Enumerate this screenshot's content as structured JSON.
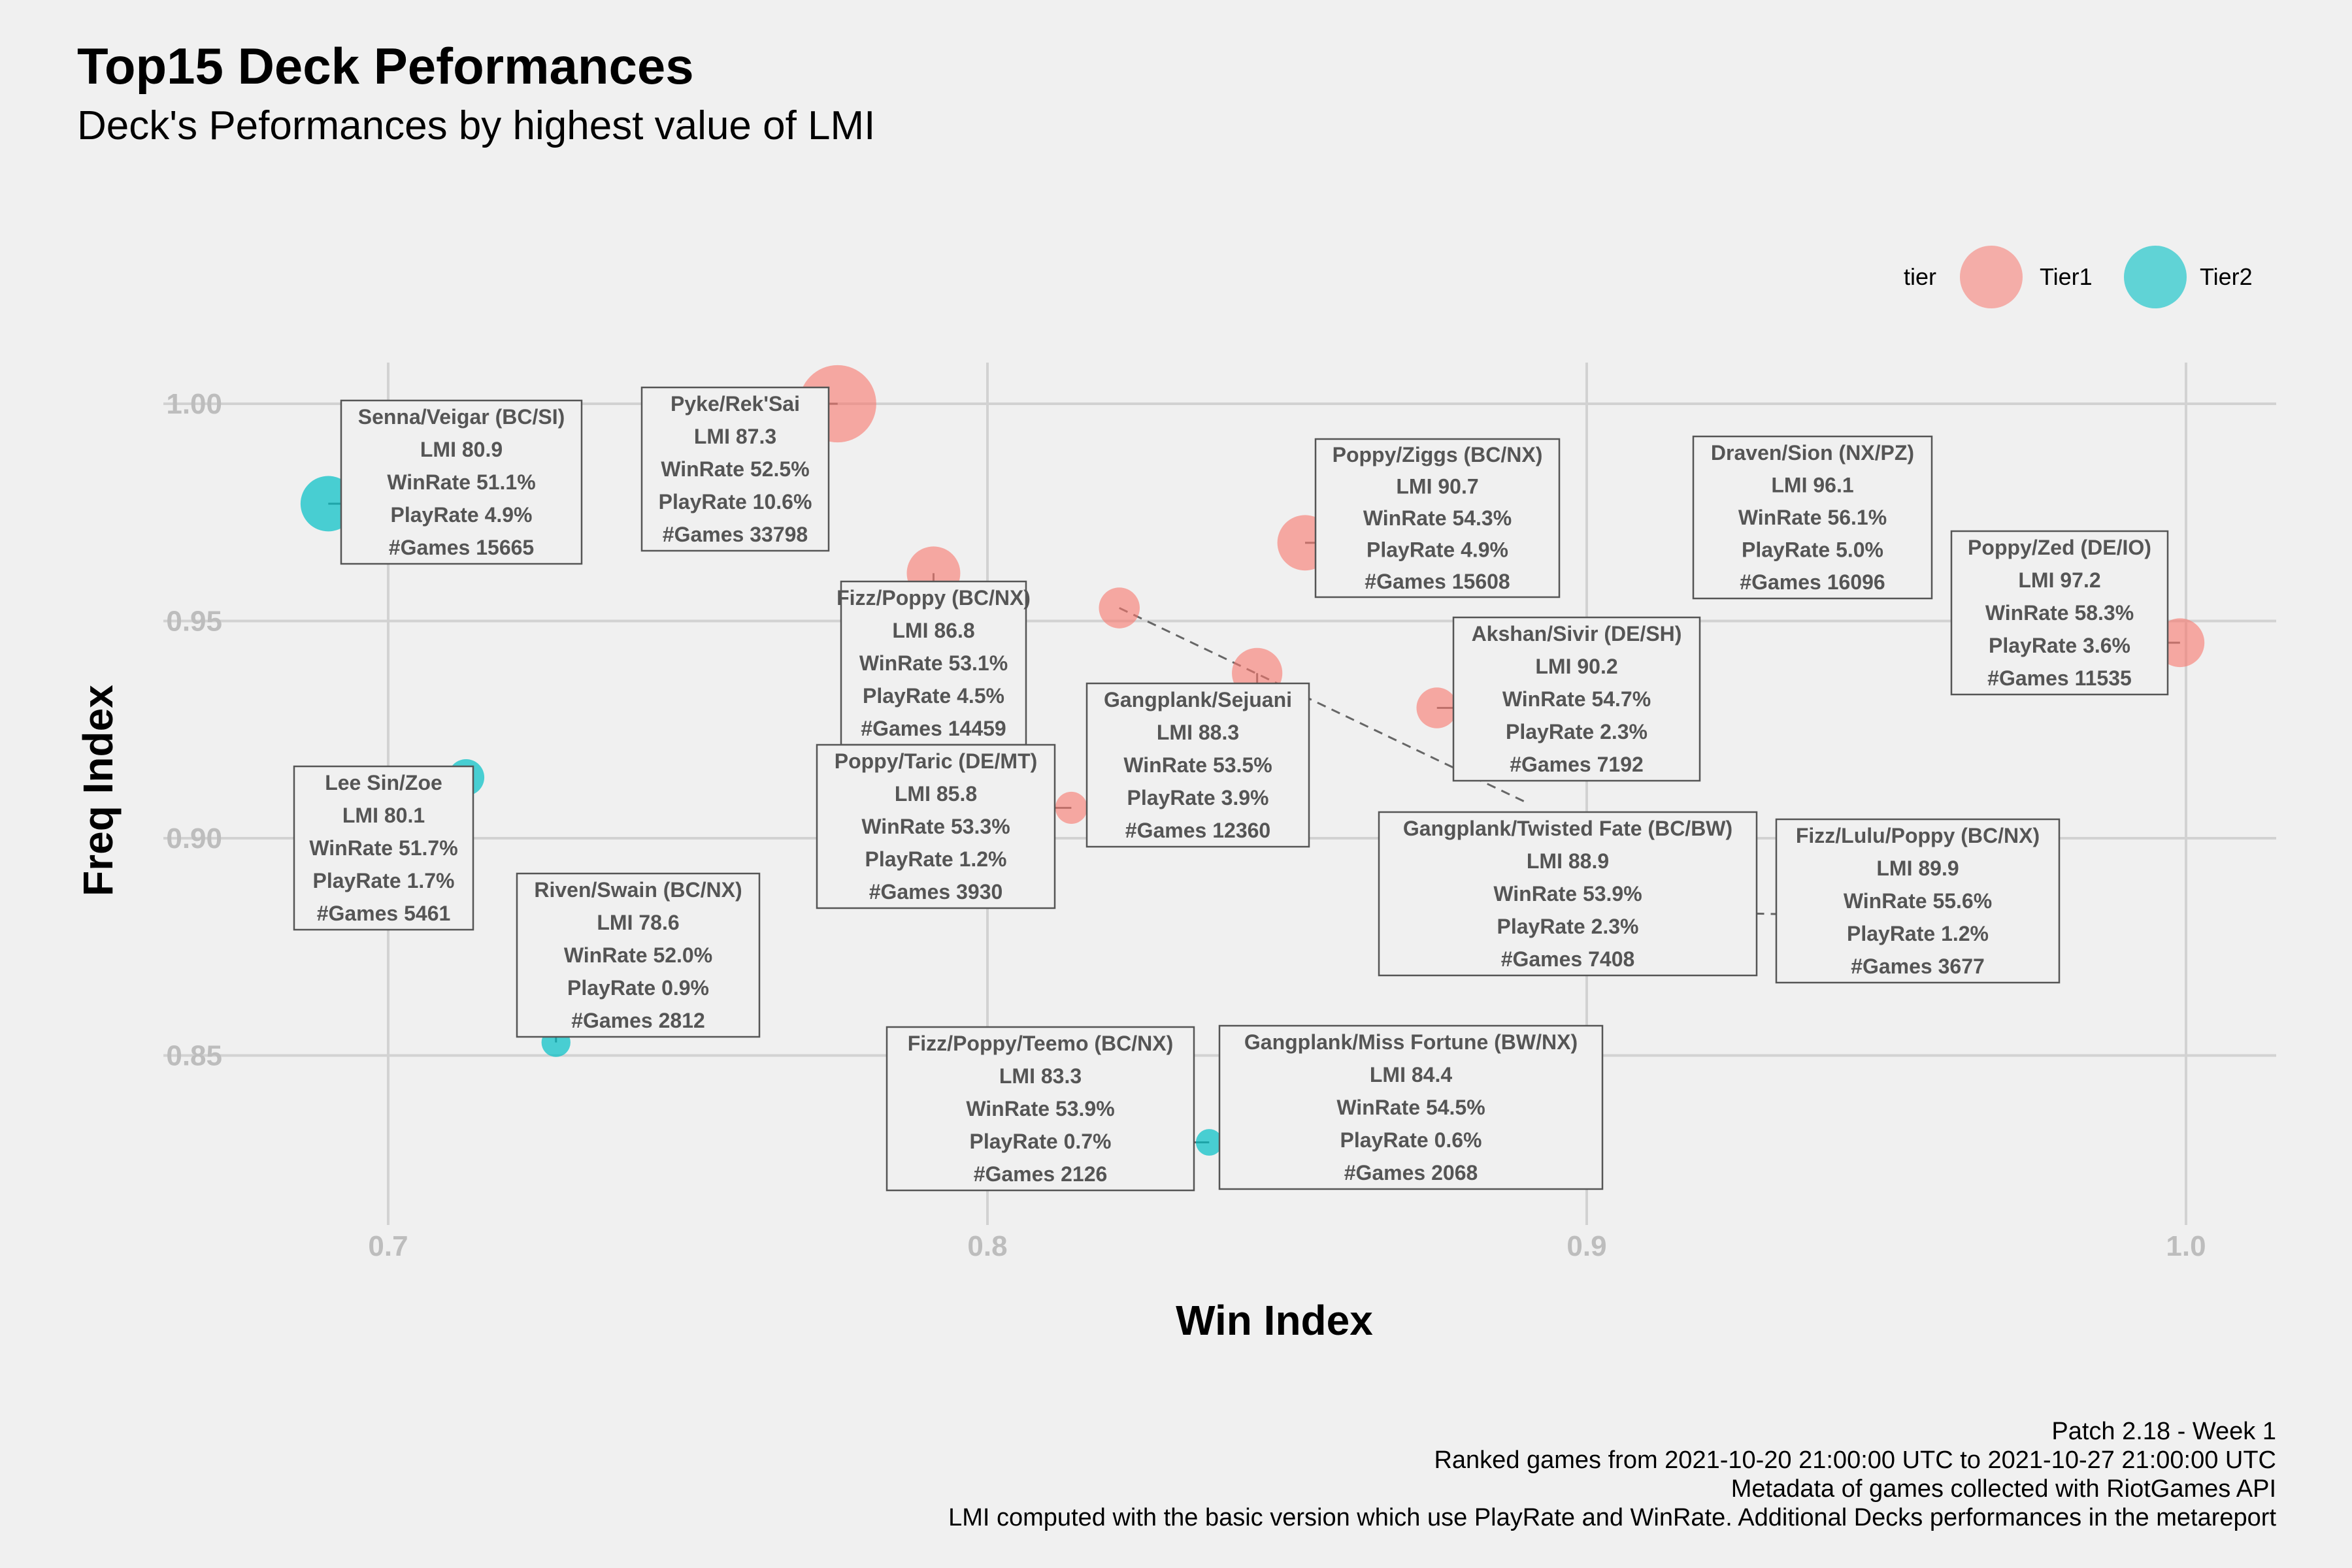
{
  "header": {
    "title": "Top15 Deck Peformances",
    "subtitle": "Deck's Peformances by highest value of LMI"
  },
  "legend": {
    "title": "tier",
    "position": "top-right"
  },
  "caption": [
    "Patch 2.18 - Week 1",
    "Ranked games from 2021-10-20 21:00:00 UTC to 2021-10-27 21:00:00 UTC",
    "Metadata of games collected with RiotGames API",
    "LMI computed with the basic version which use PlayRate and WinRate. Additional Decks performances in the metareport"
  ],
  "colors": {
    "Tier1": "#f8766d",
    "Tier2": "#00bfc4",
    "background": "#f0f0f0"
  },
  "chart_data": {
    "type": "scatter",
    "xlabel": "Win Index",
    "ylabel": "Freq Index",
    "xlim": [
      0.668,
      1.015
    ],
    "ylim": [
      0.81,
      1.01
    ],
    "xticks": [
      0.7,
      0.8,
      0.9,
      1.0
    ],
    "xtick_labels": [
      "0.7",
      "0.8",
      "0.9",
      "1.0"
    ],
    "yticks": [
      0.85,
      0.9,
      0.95,
      1.0
    ],
    "ytick_labels": [
      "0.85",
      "0.90",
      "0.95",
      "1.00"
    ],
    "grid": true,
    "series": [
      {
        "name": "Tier1",
        "color": "#f8766d"
      },
      {
        "name": "Tier2",
        "color": "#00bfc4"
      }
    ],
    "points": [
      {
        "deck": "Senna/Veigar (BC/SI)",
        "tier": "Tier2",
        "x": 0.69,
        "y": 0.977,
        "size": 4.9,
        "lines": [
          "Senna/Veigar (BC/SI)",
          "LMI 80.9",
          "WinRate 51.1%",
          "PlayRate 4.9%",
          "#Games 15665"
        ]
      },
      {
        "deck": "Pyke/Rek'Sai",
        "tier": "Tier1",
        "x": 0.775,
        "y": 1.0,
        "size": 10.6,
        "lines": [
          "Pyke/Rek'Sai",
          "LMI 87.3",
          "WinRate 52.5%",
          "PlayRate 10.6%",
          "#Games 33798"
        ]
      },
      {
        "deck": "Fizz/Poppy (BC/NX)",
        "tier": "Tier1",
        "x": 0.791,
        "y": 0.961,
        "size": 4.5,
        "lines": [
          "Fizz/Poppy (BC/NX)",
          "LMI 86.8",
          "WinRate 53.1%",
          "PlayRate 4.5%",
          "#Games 14459"
        ]
      },
      {
        "deck": "Poppy/Ziggs (BC/NX)",
        "tier": "Tier1",
        "x": 0.853,
        "y": 0.968,
        "size": 4.9,
        "lines": [
          "Poppy/Ziggs (BC/NX)",
          "LMI 90.7",
          "WinRate 54.3%",
          "PlayRate 4.9%",
          "#Games 15608"
        ]
      },
      {
        "deck": "Draven/Sion (NX/PZ)",
        "tier": "Tier1",
        "x": 0.938,
        "y": 0.984,
        "size": 5.0,
        "lines": [
          "Draven/Sion (NX/PZ)",
          "LMI 96.1",
          "WinRate 56.1%",
          "PlayRate 5.0%",
          "#Games 16096"
        ]
      },
      {
        "deck": "Poppy/Zed (DE/IO)",
        "tier": "Tier1",
        "x": 0.999,
        "y": 0.945,
        "size": 3.6,
        "lines": [
          "Poppy/Zed (DE/IO)",
          "LMI 97.2",
          "WinRate 58.3%",
          "PlayRate 3.6%",
          "#Games 11535"
        ]
      },
      {
        "deck": "Gangplank/Twisted Fate (BC/BW)",
        "tier": "Tier1",
        "x": 0.822,
        "y": 0.953,
        "size": 2.3,
        "lines": [
          "Gangplank/Twisted Fate (BC/BW)",
          "LMI 88.9",
          "WinRate 53.9%",
          "PlayRate 2.3%",
          "#Games 7408"
        ]
      },
      {
        "deck": "Gangplank/Sejuani",
        "tier": "Tier1",
        "x": 0.845,
        "y": 0.938,
        "size": 3.9,
        "lines": [
          "Gangplank/Sejuani",
          "LMI 88.3",
          "WinRate 53.5%",
          "PlayRate 3.9%",
          "#Games 12360"
        ]
      },
      {
        "deck": "Akshan/Sivir (DE/SH)",
        "tier": "Tier1",
        "x": 0.875,
        "y": 0.93,
        "size": 2.3,
        "lines": [
          "Akshan/Sivir (DE/SH)",
          "LMI 90.2",
          "WinRate 54.7%",
          "PlayRate 2.3%",
          "#Games 7192"
        ]
      },
      {
        "deck": "Lee Sin/Zoe",
        "tier": "Tier2",
        "x": 0.713,
        "y": 0.914,
        "size": 1.7,
        "lines": [
          "Lee Sin/Zoe",
          "LMI 80.1",
          "WinRate 51.7%",
          "PlayRate 1.7%",
          "#Games 5461"
        ]
      },
      {
        "deck": "Poppy/Taric (DE/MT)",
        "tier": "Tier1",
        "x": 0.814,
        "y": 0.907,
        "size": 1.2,
        "lines": [
          "Poppy/Taric (DE/MT)",
          "LMI 85.8",
          "WinRate 53.3%",
          "PlayRate 1.2%",
          "#Games 3930"
        ]
      },
      {
        "deck": "Fizz/Lulu/Poppy (BC/NX)",
        "tier": "Tier1",
        "x": 0.915,
        "y": 0.883,
        "size": 1.2,
        "lines": [
          "Fizz/Lulu/Poppy (BC/NX)",
          "LMI 89.9",
          "WinRate 55.6%",
          "PlayRate 1.2%",
          "#Games 3677"
        ]
      },
      {
        "deck": "Riven/Swain (BC/NX)",
        "tier": "Tier2",
        "x": 0.728,
        "y": 0.853,
        "size": 0.9,
        "lines": [
          "Riven/Swain (BC/NX)",
          "LMI 78.6",
          "WinRate 52.0%",
          "PlayRate 0.9%",
          "#Games 2812"
        ]
      },
      {
        "deck": "Fizz/Poppy/Teemo (BC/NX)",
        "tier": "Tier2",
        "x": 0.837,
        "y": 0.83,
        "size": 0.7,
        "lines": [
          "Fizz/Poppy/Teemo (BC/NX)",
          "LMI 83.3",
          "WinRate 53.9%",
          "PlayRate 0.7%",
          "#Games 2126"
        ]
      },
      {
        "deck": "Gangplank/Miss Fortune (BW/NX)",
        "tier": "Tier2",
        "x": 0.868,
        "y": 0.823,
        "size": 0.6,
        "lines": [
          "Gangplank/Miss Fortune (BW/NX)",
          "LMI 84.4",
          "WinRate 54.5%",
          "PlayRate 0.6%",
          "#Games 2068"
        ]
      }
    ]
  }
}
